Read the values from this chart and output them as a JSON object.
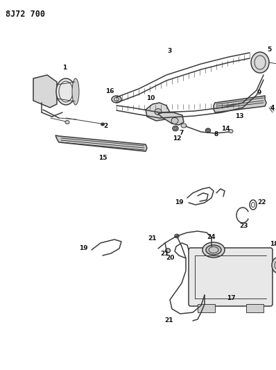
{
  "title": "8J72 700",
  "bg_color": "#ffffff",
  "line_color": "#3a3a3a",
  "label_color": "#111111",
  "title_fontsize": 8.5,
  "label_fontsize": 6.5,
  "figsize": [
    3.98,
    5.33
  ],
  "dpi": 100
}
